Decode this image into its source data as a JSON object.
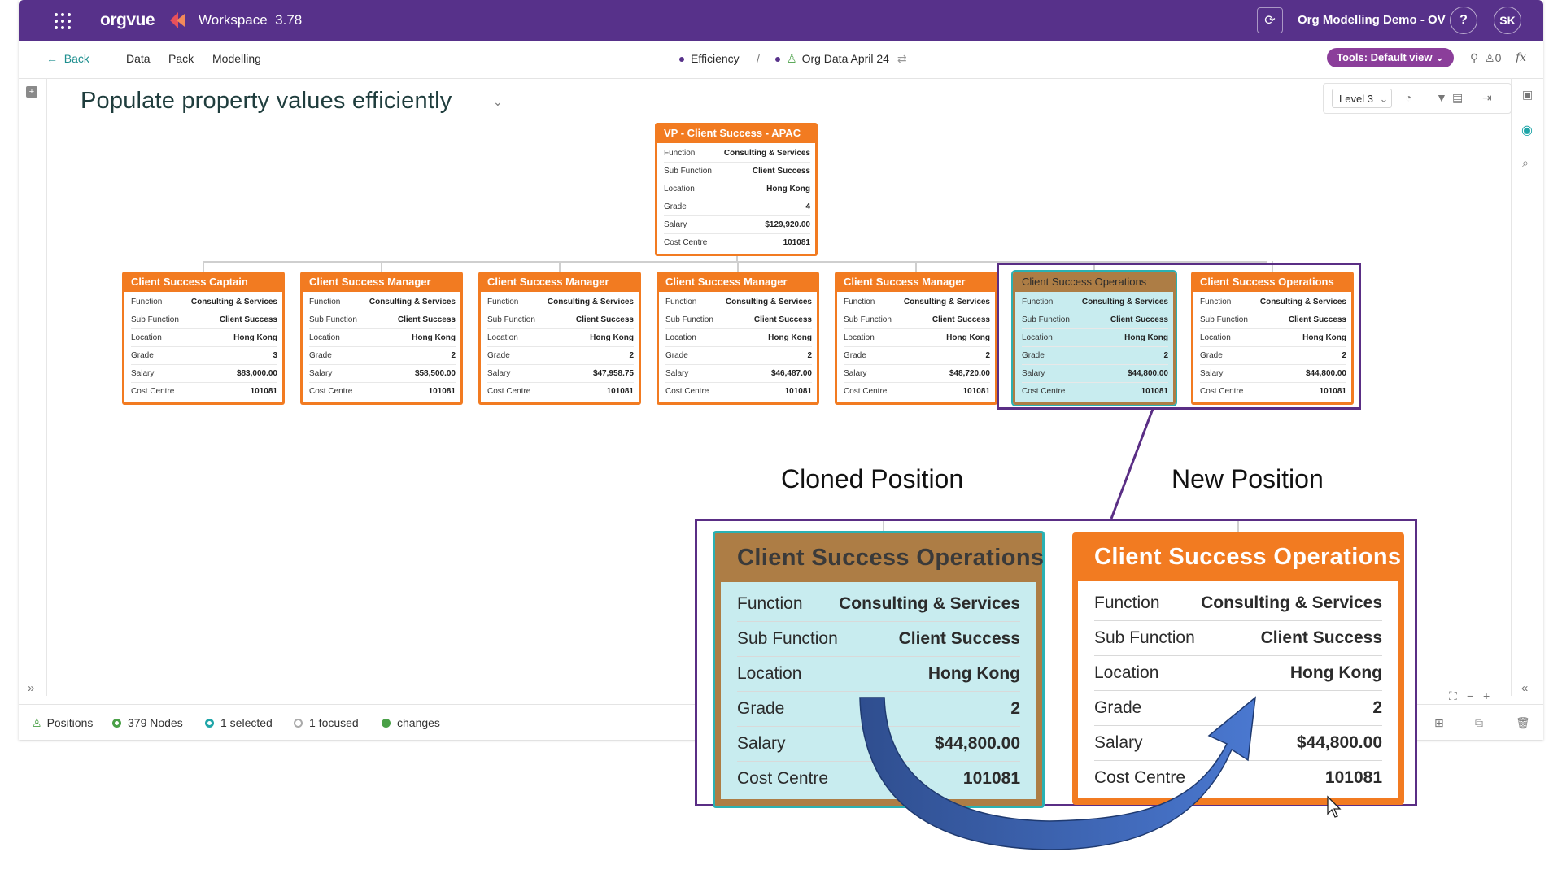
{
  "topbar": {
    "logo": "orgvue",
    "workspace": "Workspace",
    "version": "3.78",
    "project": "Org Modelling Demo - OV",
    "help": "?",
    "user_initials": "SK"
  },
  "subbar": {
    "back": "Back",
    "menu": [
      "Data",
      "Pack",
      "Modelling"
    ],
    "breadcrumb_1": "Efficiency",
    "separator": "/",
    "breadcrumb_2": "Org Data April 24",
    "tools_button": "Tools: Default view",
    "alert_count": "0"
  },
  "canvas": {
    "title": "Populate property values efficiently",
    "level_select": "Level 3"
  },
  "org_chart": {
    "root": {
      "title": "VP - Client Success - APAC",
      "rows": [
        [
          "Function",
          "Consulting & Services"
        ],
        [
          "Sub Function",
          "Client Success"
        ],
        [
          "Location",
          "Hong Kong"
        ],
        [
          "Grade",
          "4"
        ],
        [
          "Salary",
          "$129,920.00"
        ],
        [
          "Cost Centre",
          "101081"
        ]
      ]
    },
    "children": [
      {
        "title": "Client Success Captain",
        "selected": false,
        "rows": [
          [
            "Function",
            "Consulting & Services"
          ],
          [
            "Sub Function",
            "Client Success"
          ],
          [
            "Location",
            "Hong Kong"
          ],
          [
            "Grade",
            "3"
          ],
          [
            "Salary",
            "$83,000.00"
          ],
          [
            "Cost Centre",
            "101081"
          ]
        ]
      },
      {
        "title": "Client Success Manager",
        "selected": false,
        "rows": [
          [
            "Function",
            "Consulting & Services"
          ],
          [
            "Sub Function",
            "Client Success"
          ],
          [
            "Location",
            "Hong Kong"
          ],
          [
            "Grade",
            "2"
          ],
          [
            "Salary",
            "$58,500.00"
          ],
          [
            "Cost Centre",
            "101081"
          ]
        ]
      },
      {
        "title": "Client Success Manager",
        "selected": false,
        "rows": [
          [
            "Function",
            "Consulting & Services"
          ],
          [
            "Sub Function",
            "Client Success"
          ],
          [
            "Location",
            "Hong Kong"
          ],
          [
            "Grade",
            "2"
          ],
          [
            "Salary",
            "$47,958.75"
          ],
          [
            "Cost Centre",
            "101081"
          ]
        ]
      },
      {
        "title": "Client Success Manager",
        "selected": false,
        "rows": [
          [
            "Function",
            "Consulting & Services"
          ],
          [
            "Sub Function",
            "Client Success"
          ],
          [
            "Location",
            "Hong Kong"
          ],
          [
            "Grade",
            "2"
          ],
          [
            "Salary",
            "$46,487.00"
          ],
          [
            "Cost Centre",
            "101081"
          ]
        ]
      },
      {
        "title": "Client Success Manager",
        "selected": false,
        "rows": [
          [
            "Function",
            "Consulting & Services"
          ],
          [
            "Sub Function",
            "Client Success"
          ],
          [
            "Location",
            "Hong Kong"
          ],
          [
            "Grade",
            "2"
          ],
          [
            "Salary",
            "$48,720.00"
          ],
          [
            "Cost Centre",
            "101081"
          ]
        ]
      },
      {
        "title": "Client Success Operations",
        "selected": true,
        "rows": [
          [
            "Function",
            "Consulting & Services"
          ],
          [
            "Sub Function",
            "Client Success"
          ],
          [
            "Location",
            "Hong Kong"
          ],
          [
            "Grade",
            "2"
          ],
          [
            "Salary",
            "$44,800.00"
          ],
          [
            "Cost Centre",
            "101081"
          ]
        ]
      },
      {
        "title": "Client Success Operations",
        "selected": false,
        "rows": [
          [
            "Function",
            "Consulting & Services"
          ],
          [
            "Sub Function",
            "Client Success"
          ],
          [
            "Location",
            "Hong Kong"
          ],
          [
            "Grade",
            "2"
          ],
          [
            "Salary",
            "$44,800.00"
          ],
          [
            "Cost Centre",
            "101081"
          ]
        ]
      }
    ]
  },
  "statusbar": {
    "positions": "Positions",
    "nodes": "379 Nodes",
    "selected": "1 selected",
    "focused": "1 focused",
    "changes": "changes"
  },
  "callout": {
    "cloned_caption": "Cloned Position",
    "new_caption": "New Position",
    "cloned": {
      "title": "Client Success Operations",
      "rows": [
        [
          "Function",
          "Consulting & Services"
        ],
        [
          "Sub Function",
          "Client Success"
        ],
        [
          "Location",
          "Hong Kong"
        ],
        [
          "Grade",
          "2"
        ],
        [
          "Salary",
          "$44,800.00"
        ],
        [
          "Cost Centre",
          "101081"
        ]
      ]
    },
    "new": {
      "title": "Client Success Operations",
      "rows": [
        [
          "Function",
          "Consulting & Services"
        ],
        [
          "Sub Function",
          "Client Success"
        ],
        [
          "Location",
          "Hong Kong"
        ],
        [
          "Grade",
          "2"
        ],
        [
          "Salary",
          "$44,800.00"
        ],
        [
          "Cost Centre",
          "101081"
        ]
      ]
    }
  },
  "colors": {
    "brand_purple": "#57318a",
    "card_orange": "#f27b21",
    "selected_teal": "#2ab1b3",
    "arrow_blue": "#3d62b2"
  }
}
